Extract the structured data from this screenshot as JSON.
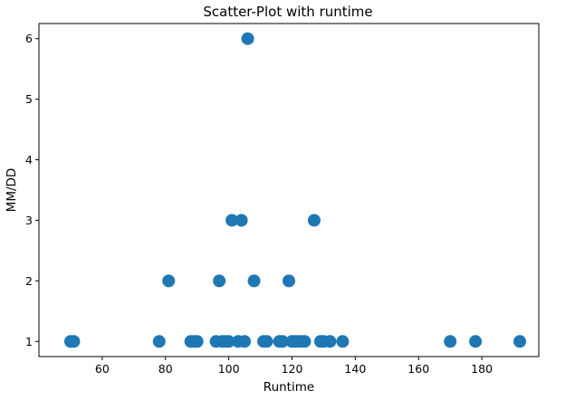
{
  "chart_data": {
    "type": "scatter",
    "title": "Scatter-Plot with runtime",
    "xlabel": "Runtime",
    "ylabel": "MM/DD",
    "xlim": [
      40,
      198
    ],
    "ylim": [
      0.75,
      6.25
    ],
    "xticks": [
      60,
      80,
      100,
      120,
      140,
      160,
      180
    ],
    "yticks": [
      1,
      2,
      3,
      4,
      5,
      6
    ],
    "grid": false,
    "marker_color": "#1f77b4",
    "points": [
      {
        "x": 50,
        "y": 1
      },
      {
        "x": 51,
        "y": 1
      },
      {
        "x": 78,
        "y": 1
      },
      {
        "x": 88,
        "y": 1
      },
      {
        "x": 89,
        "y": 1
      },
      {
        "x": 90,
        "y": 1
      },
      {
        "x": 96,
        "y": 1
      },
      {
        "x": 98,
        "y": 1
      },
      {
        "x": 99,
        "y": 1
      },
      {
        "x": 100,
        "y": 1
      },
      {
        "x": 103,
        "y": 1
      },
      {
        "x": 105,
        "y": 1
      },
      {
        "x": 111,
        "y": 1
      },
      {
        "x": 112,
        "y": 1
      },
      {
        "x": 116,
        "y": 1
      },
      {
        "x": 117,
        "y": 1
      },
      {
        "x": 120,
        "y": 1
      },
      {
        "x": 121,
        "y": 1
      },
      {
        "x": 122,
        "y": 1
      },
      {
        "x": 123,
        "y": 1
      },
      {
        "x": 124,
        "y": 1
      },
      {
        "x": 129,
        "y": 1
      },
      {
        "x": 130,
        "y": 1
      },
      {
        "x": 132,
        "y": 1
      },
      {
        "x": 136,
        "y": 1
      },
      {
        "x": 170,
        "y": 1
      },
      {
        "x": 178,
        "y": 1
      },
      {
        "x": 192,
        "y": 1
      },
      {
        "x": 81,
        "y": 2
      },
      {
        "x": 97,
        "y": 2
      },
      {
        "x": 108,
        "y": 2
      },
      {
        "x": 119,
        "y": 2
      },
      {
        "x": 101,
        "y": 3
      },
      {
        "x": 104,
        "y": 3
      },
      {
        "x": 127,
        "y": 3
      },
      {
        "x": 106,
        "y": 6
      }
    ]
  }
}
